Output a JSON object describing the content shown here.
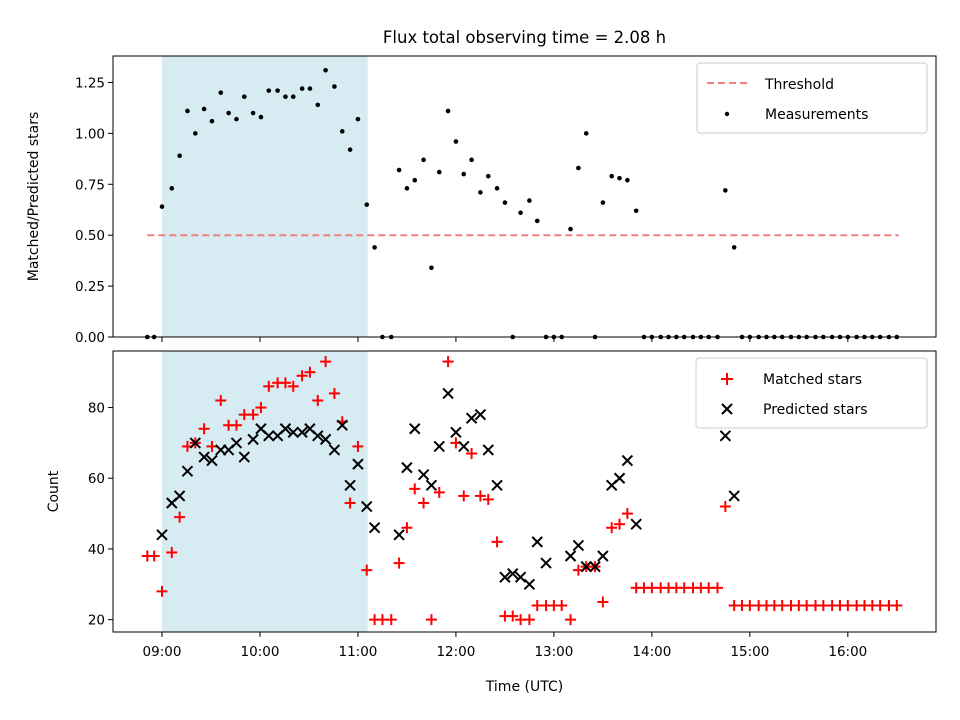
{
  "chart_data": [
    {
      "type": "scatter",
      "title": "Flux total observing time = 2.08 h",
      "xlabel": "",
      "ylabel": "Matched/Predicted stars",
      "ylim": [
        0,
        1.38
      ],
      "xlim": [
        8.5,
        16.9
      ],
      "yticks": [
        "0.00",
        "0.25",
        "0.50",
        "0.75",
        "1.00",
        "1.25"
      ],
      "ytick_values": [
        0,
        0.25,
        0.5,
        0.75,
        1.0,
        1.25
      ],
      "highlight_span": [
        9.0,
        11.1
      ],
      "threshold": {
        "name": "Threshold",
        "value": 0.5,
        "x_range": [
          8.85,
          16.52
        ],
        "color": "#f08080"
      },
      "legend": {
        "placement": "top-right",
        "entries": [
          "Threshold",
          "Measurements"
        ]
      },
      "series": [
        {
          "name": "Measurements",
          "color": "#000000",
          "x": [
            8.85,
            8.92,
            9.0,
            9.1,
            9.18,
            9.26,
            9.34,
            9.43,
            9.51,
            9.6,
            9.68,
            9.76,
            9.84,
            9.93,
            10.01,
            10.09,
            10.18,
            10.26,
            10.34,
            10.43,
            10.51,
            10.59,
            10.67,
            10.76,
            10.84,
            10.92,
            11.0,
            11.09,
            11.17,
            11.25,
            11.34,
            11.42,
            11.5,
            11.58,
            11.67,
            11.75,
            11.83,
            11.92,
            12.0,
            12.08,
            12.16,
            12.25,
            12.33,
            12.42,
            12.5,
            12.58,
            12.66,
            12.75,
            12.83,
            12.92,
            13.0,
            13.08,
            13.17,
            13.25,
            13.33,
            13.42,
            13.5,
            13.59,
            13.67,
            13.75,
            13.84,
            13.92,
            14.0,
            14.09,
            14.17,
            14.25,
            14.33,
            14.42,
            14.5,
            14.58,
            14.67,
            14.75,
            14.84,
            14.92,
            15.0,
            15.09,
            15.17,
            15.25,
            15.33,
            15.42,
            15.5,
            15.58,
            15.67,
            15.75,
            15.84,
            15.92,
            16.0,
            16.09,
            16.17,
            16.25,
            16.33,
            16.42,
            16.5
          ],
          "y": [
            0,
            0,
            0.64,
            0.73,
            0.89,
            1.11,
            1.0,
            1.12,
            1.06,
            1.2,
            1.1,
            1.07,
            1.18,
            1.1,
            1.08,
            1.21,
            1.21,
            1.18,
            1.18,
            1.22,
            1.22,
            1.14,
            1.31,
            1.23,
            1.01,
            0.92,
            1.07,
            0.65,
            0.44,
            0,
            0,
            0.82,
            0.73,
            0.77,
            0.87,
            0.34,
            0.81,
            1.11,
            0.96,
            0.8,
            0.87,
            0.71,
            0.79,
            0.73,
            0.66,
            0,
            0.61,
            0.67,
            0.57,
            0,
            0,
            0,
            0.53,
            0.83,
            1.0,
            0,
            0.66,
            0.79,
            0.78,
            0.77,
            0.62,
            0,
            0,
            0,
            0,
            0,
            0,
            0,
            0,
            0,
            0,
            0.72,
            0.44,
            0,
            0,
            0,
            0,
            0,
            0,
            0,
            0,
            0,
            0,
            0,
            0,
            0,
            0,
            0,
            0,
            0,
            0,
            0,
            0
          ]
        }
      ]
    },
    {
      "type": "scatter",
      "title": "",
      "xlabel": "Time (UTC)",
      "ylabel": "Count",
      "ylim": [
        16.5,
        96
      ],
      "xlim": [
        8.5,
        16.9
      ],
      "yticks": [
        "20",
        "40",
        "60",
        "80"
      ],
      "ytick_values": [
        20,
        40,
        60,
        80
      ],
      "xticks": [
        "09:00",
        "10:00",
        "11:00",
        "12:00",
        "13:00",
        "14:00",
        "15:00",
        "16:00"
      ],
      "xtick_values": [
        9,
        10,
        11,
        12,
        13,
        14,
        15,
        16
      ],
      "highlight_span": [
        9.0,
        11.1
      ],
      "legend": {
        "placement": "top-right",
        "entries": [
          "Matched stars",
          "Predicted stars"
        ]
      },
      "series": [
        {
          "name": "Matched stars",
          "marker": "plus",
          "color": "#ff0000",
          "x": [
            8.85,
            8.92,
            9.0,
            9.1,
            9.18,
            9.26,
            9.34,
            9.43,
            9.51,
            9.6,
            9.68,
            9.76,
            9.84,
            9.93,
            10.01,
            10.09,
            10.18,
            10.26,
            10.34,
            10.43,
            10.51,
            10.59,
            10.67,
            10.76,
            10.84,
            10.92,
            11.0,
            11.09,
            11.17,
            11.25,
            11.34,
            11.42,
            11.5,
            11.58,
            11.67,
            11.75,
            11.83,
            11.92,
            12.0,
            12.08,
            12.16,
            12.25,
            12.33,
            12.42,
            12.5,
            12.58,
            12.66,
            12.75,
            12.83,
            12.92,
            13.0,
            13.08,
            13.17,
            13.25,
            13.33,
            13.42,
            13.5,
            13.59,
            13.67,
            13.75,
            13.84,
            13.92,
            14.0,
            14.09,
            14.17,
            14.25,
            14.33,
            14.42,
            14.5,
            14.58,
            14.67,
            14.75,
            14.84,
            14.92,
            15.0,
            15.09,
            15.17,
            15.25,
            15.33,
            15.42,
            15.5,
            15.58,
            15.67,
            15.75,
            15.84,
            15.92,
            16.0,
            16.09,
            16.17,
            16.25,
            16.33,
            16.42,
            16.5
          ],
          "y": [
            38,
            38,
            28,
            39,
            49,
            69,
            70,
            74,
            69,
            82,
            75,
            75,
            78,
            78,
            80,
            86,
            87,
            87,
            86,
            89,
            90,
            82,
            93,
            84,
            76,
            53,
            69,
            34,
            20,
            20,
            20,
            36,
            46,
            57,
            53,
            20,
            56,
            93,
            70,
            55,
            67,
            55,
            54,
            42,
            21,
            21,
            20,
            20,
            24,
            24,
            24,
            24,
            20,
            34,
            35,
            35,
            25,
            46,
            47,
            50,
            29,
            29,
            29,
            29,
            29,
            29,
            29,
            29,
            29,
            29,
            29,
            52,
            24,
            24,
            24,
            24,
            24,
            24,
            24,
            24,
            24,
            24,
            24,
            24,
            24,
            24,
            24,
            24,
            24,
            24,
            24,
            24,
            24
          ]
        },
        {
          "name": "Predicted stars",
          "marker": "x",
          "color": "#000000",
          "x": [
            9.0,
            9.1,
            9.18,
            9.26,
            9.34,
            9.43,
            9.51,
            9.6,
            9.68,
            9.76,
            9.84,
            9.93,
            10.01,
            10.09,
            10.18,
            10.26,
            10.34,
            10.43,
            10.51,
            10.59,
            10.67,
            10.76,
            10.84,
            10.92,
            11.0,
            11.09,
            11.17,
            11.42,
            11.5,
            11.58,
            11.67,
            11.75,
            11.83,
            11.92,
            12.0,
            12.08,
            12.16,
            12.25,
            12.33,
            12.42,
            12.5,
            12.58,
            12.66,
            12.75,
            12.83,
            12.92,
            13.17,
            13.25,
            13.33,
            13.42,
            13.5,
            13.59,
            13.67,
            13.75,
            13.84,
            14.75,
            14.84
          ],
          "y": [
            44,
            53,
            55,
            62,
            70,
            66,
            65,
            68,
            68,
            70,
            66,
            71,
            74,
            72,
            72,
            74,
            73,
            73,
            74,
            72,
            71,
            68,
            75,
            58,
            64,
            52,
            46,
            44,
            63,
            74,
            61,
            58,
            69,
            84,
            73,
            69,
            77,
            78,
            68,
            58,
            32,
            33,
            32,
            30,
            42,
            36,
            38,
            41,
            35,
            35,
            38,
            58,
            60,
            65,
            47,
            72,
            55
          ]
        }
      ]
    }
  ]
}
